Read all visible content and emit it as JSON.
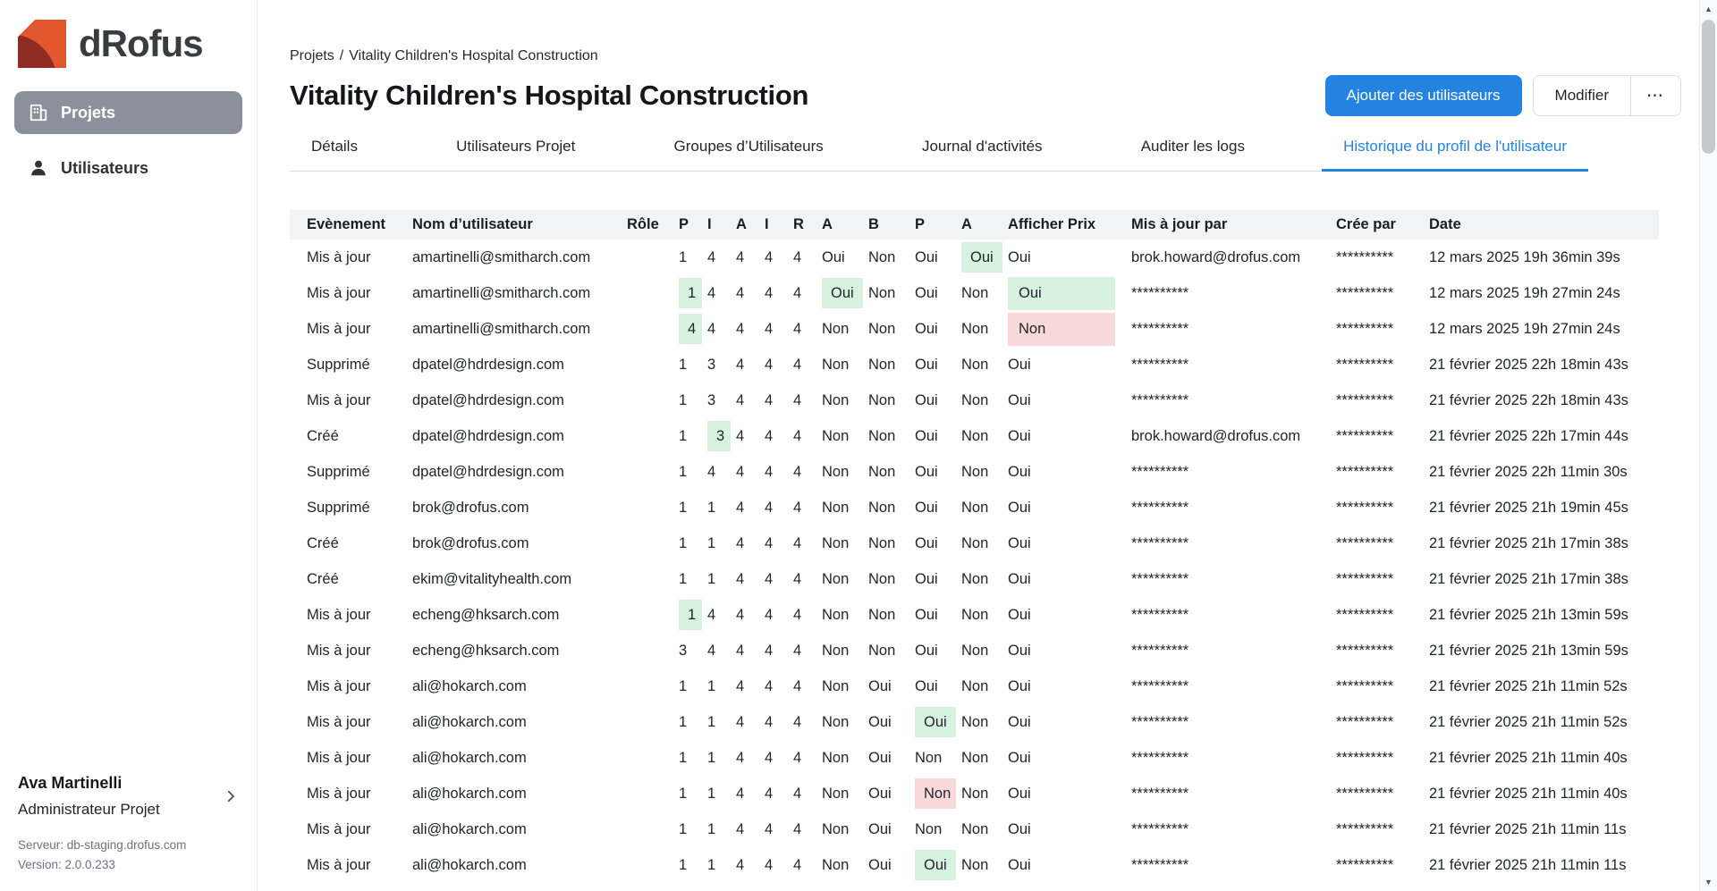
{
  "colors": {
    "accent_blue": "#2383e2",
    "highlight_green": "#d7f3e0",
    "highlight_red": "#f9d8da",
    "active_nav_gray": "#8a919a"
  },
  "sidebar": {
    "logo_text": "dRofus",
    "nav": [
      {
        "label": "Projets",
        "active": true
      },
      {
        "label": "Utilisateurs",
        "active": false
      }
    ],
    "user": {
      "name": "Ava Martinelli",
      "role": "Administrateur Projet",
      "server": "Serveur: db-staging.drofus.com",
      "version": "Version: 2.0.0.233"
    }
  },
  "header": {
    "breadcrumb": {
      "root": "Projets",
      "separator": "/",
      "current": "Vitality Children's Hospital Construction"
    },
    "title": "Vitality Children's Hospital Construction",
    "actions": {
      "add_users": "Ajouter des utilisateurs",
      "edit": "Modifier",
      "more": "⋯"
    }
  },
  "tabs": [
    {
      "label": "Détails",
      "active": false
    },
    {
      "label": "Utilisateurs Projet",
      "active": false
    },
    {
      "label": "Groupes d’Utilisateurs",
      "active": false
    },
    {
      "label": "Journal d'activités",
      "active": false
    },
    {
      "label": "Auditer les logs",
      "active": false
    },
    {
      "label": "Historique du profil de l'utilisateur",
      "active": true
    }
  ],
  "table": {
    "headers": [
      "Evènement",
      "Nom d’utilisateur",
      "Rôle",
      "P",
      "I",
      "A",
      "I",
      "R",
      "A",
      "B",
      "P",
      "A",
      "Afficher Prix",
      "Mis à jour par",
      "Crée par",
      "Date"
    ],
    "rows": [
      {
        "event": "Mis à jour",
        "user": "amartinelli@smitharch.com",
        "role": "",
        "cells": [
          [
            "1",
            ""
          ],
          [
            "4",
            ""
          ],
          [
            "4",
            ""
          ],
          [
            "4",
            ""
          ],
          [
            "4",
            ""
          ],
          [
            "Oui",
            ""
          ],
          [
            "Non",
            ""
          ],
          [
            "Oui",
            ""
          ],
          [
            "Oui",
            "g"
          ],
          [
            "Oui",
            ""
          ]
        ],
        "updated_by": "brok.howard@drofus.com",
        "created_by": "**********",
        "date": "12 mars 2025 19h 36min 39s"
      },
      {
        "event": "Mis à jour",
        "user": "amartinelli@smitharch.com",
        "role": "",
        "cells": [
          [
            "1",
            "g"
          ],
          [
            "4",
            ""
          ],
          [
            "4",
            ""
          ],
          [
            "4",
            ""
          ],
          [
            "4",
            ""
          ],
          [
            "Oui",
            "g"
          ],
          [
            "Non",
            ""
          ],
          [
            "Oui",
            ""
          ],
          [
            "Non",
            ""
          ],
          [
            "Oui",
            "g"
          ]
        ],
        "updated_by": "**********",
        "created_by": "**********",
        "date": "12 mars 2025 19h 27min 24s"
      },
      {
        "event": "Mis à jour",
        "user": "amartinelli@smitharch.com",
        "role": "",
        "cells": [
          [
            "4",
            "g"
          ],
          [
            "4",
            ""
          ],
          [
            "4",
            ""
          ],
          [
            "4",
            ""
          ],
          [
            "4",
            ""
          ],
          [
            "Non",
            ""
          ],
          [
            "Non",
            ""
          ],
          [
            "Oui",
            ""
          ],
          [
            "Non",
            ""
          ],
          [
            "Non",
            "r"
          ]
        ],
        "updated_by": "**********",
        "created_by": "**********",
        "date": "12 mars 2025 19h 27min 24s"
      },
      {
        "event": "Supprimé",
        "user": "dpatel@hdrdesign.com",
        "role": "",
        "cells": [
          [
            "1",
            ""
          ],
          [
            "3",
            ""
          ],
          [
            "4",
            ""
          ],
          [
            "4",
            ""
          ],
          [
            "4",
            ""
          ],
          [
            "Non",
            ""
          ],
          [
            "Non",
            ""
          ],
          [
            "Oui",
            ""
          ],
          [
            "Non",
            ""
          ],
          [
            "Oui",
            ""
          ]
        ],
        "updated_by": "**********",
        "created_by": "**********",
        "date": "21 février 2025 22h 18min 43s"
      },
      {
        "event": "Mis à jour",
        "user": "dpatel@hdrdesign.com",
        "role": "",
        "cells": [
          [
            "1",
            ""
          ],
          [
            "3",
            ""
          ],
          [
            "4",
            ""
          ],
          [
            "4",
            ""
          ],
          [
            "4",
            ""
          ],
          [
            "Non",
            ""
          ],
          [
            "Non",
            ""
          ],
          [
            "Oui",
            ""
          ],
          [
            "Non",
            ""
          ],
          [
            "Oui",
            ""
          ]
        ],
        "updated_by": "**********",
        "created_by": "**********",
        "date": "21 février 2025 22h 18min 43s"
      },
      {
        "event": "Créé",
        "user": "dpatel@hdrdesign.com",
        "role": "",
        "cells": [
          [
            "1",
            ""
          ],
          [
            "3",
            "g"
          ],
          [
            "4",
            ""
          ],
          [
            "4",
            ""
          ],
          [
            "4",
            ""
          ],
          [
            "Non",
            ""
          ],
          [
            "Non",
            ""
          ],
          [
            "Oui",
            ""
          ],
          [
            "Non",
            ""
          ],
          [
            "Oui",
            ""
          ]
        ],
        "updated_by": "brok.howard@drofus.com",
        "created_by": "**********",
        "date": "21 février 2025 22h 17min 44s"
      },
      {
        "event": "Supprimé",
        "user": "dpatel@hdrdesign.com",
        "role": "",
        "cells": [
          [
            "1",
            ""
          ],
          [
            "4",
            ""
          ],
          [
            "4",
            ""
          ],
          [
            "4",
            ""
          ],
          [
            "4",
            ""
          ],
          [
            "Non",
            ""
          ],
          [
            "Non",
            ""
          ],
          [
            "Oui",
            ""
          ],
          [
            "Non",
            ""
          ],
          [
            "Oui",
            ""
          ]
        ],
        "updated_by": "**********",
        "created_by": "**********",
        "date": "21 février 2025 22h 11min 30s"
      },
      {
        "event": "Supprimé",
        "user": "brok@drofus.com",
        "role": "",
        "cells": [
          [
            "1",
            ""
          ],
          [
            "1",
            ""
          ],
          [
            "4",
            ""
          ],
          [
            "4",
            ""
          ],
          [
            "4",
            ""
          ],
          [
            "Non",
            ""
          ],
          [
            "Non",
            ""
          ],
          [
            "Oui",
            ""
          ],
          [
            "Non",
            ""
          ],
          [
            "Oui",
            ""
          ]
        ],
        "updated_by": "**********",
        "created_by": "**********",
        "date": "21 février 2025 21h 19min 45s"
      },
      {
        "event": "Créé",
        "user": "brok@drofus.com",
        "role": "",
        "cells": [
          [
            "1",
            ""
          ],
          [
            "1",
            ""
          ],
          [
            "4",
            ""
          ],
          [
            "4",
            ""
          ],
          [
            "4",
            ""
          ],
          [
            "Non",
            ""
          ],
          [
            "Non",
            ""
          ],
          [
            "Oui",
            ""
          ],
          [
            "Non",
            ""
          ],
          [
            "Oui",
            ""
          ]
        ],
        "updated_by": "**********",
        "created_by": "**********",
        "date": "21 février 2025 21h 17min 38s"
      },
      {
        "event": "Créé",
        "user": "ekim@vitalityhealth.com",
        "role": "",
        "cells": [
          [
            "1",
            ""
          ],
          [
            "1",
            ""
          ],
          [
            "4",
            ""
          ],
          [
            "4",
            ""
          ],
          [
            "4",
            ""
          ],
          [
            "Non",
            ""
          ],
          [
            "Non",
            ""
          ],
          [
            "Oui",
            ""
          ],
          [
            "Non",
            ""
          ],
          [
            "Oui",
            ""
          ]
        ],
        "updated_by": "**********",
        "created_by": "**********",
        "date": "21 février 2025 21h 17min 38s"
      },
      {
        "event": "Mis à jour",
        "user": "echeng@hksarch.com",
        "role": "",
        "cells": [
          [
            "1",
            "g"
          ],
          [
            "4",
            ""
          ],
          [
            "4",
            ""
          ],
          [
            "4",
            ""
          ],
          [
            "4",
            ""
          ],
          [
            "Non",
            ""
          ],
          [
            "Non",
            ""
          ],
          [
            "Oui",
            ""
          ],
          [
            "Non",
            ""
          ],
          [
            "Oui",
            ""
          ]
        ],
        "updated_by": "**********",
        "created_by": "**********",
        "date": "21 février 2025 21h 13min 59s"
      },
      {
        "event": "Mis à jour",
        "user": "echeng@hksarch.com",
        "role": "",
        "cells": [
          [
            "3",
            ""
          ],
          [
            "4",
            ""
          ],
          [
            "4",
            ""
          ],
          [
            "4",
            ""
          ],
          [
            "4",
            ""
          ],
          [
            "Non",
            ""
          ],
          [
            "Non",
            ""
          ],
          [
            "Oui",
            ""
          ],
          [
            "Non",
            ""
          ],
          [
            "Oui",
            ""
          ]
        ],
        "updated_by": "**********",
        "created_by": "**********",
        "date": "21 février 2025 21h 13min 59s"
      },
      {
        "event": "Mis à jour",
        "user": "ali@hokarch.com",
        "role": "",
        "cells": [
          [
            "1",
            ""
          ],
          [
            "1",
            ""
          ],
          [
            "4",
            ""
          ],
          [
            "4",
            ""
          ],
          [
            "4",
            ""
          ],
          [
            "Non",
            ""
          ],
          [
            "Oui",
            ""
          ],
          [
            "Oui",
            ""
          ],
          [
            "Non",
            ""
          ],
          [
            "Oui",
            ""
          ]
        ],
        "updated_by": "**********",
        "created_by": "**********",
        "date": "21 février 2025 21h 11min 52s"
      },
      {
        "event": "Mis à jour",
        "user": "ali@hokarch.com",
        "role": "",
        "cells": [
          [
            "1",
            ""
          ],
          [
            "1",
            ""
          ],
          [
            "4",
            ""
          ],
          [
            "4",
            ""
          ],
          [
            "4",
            ""
          ],
          [
            "Non",
            ""
          ],
          [
            "Oui",
            ""
          ],
          [
            "Oui",
            "g"
          ],
          [
            "Non",
            ""
          ],
          [
            "Oui",
            ""
          ]
        ],
        "updated_by": "**********",
        "created_by": "**********",
        "date": "21 février 2025 21h 11min 52s"
      },
      {
        "event": "Mis à jour",
        "user": "ali@hokarch.com",
        "role": "",
        "cells": [
          [
            "1",
            ""
          ],
          [
            "1",
            ""
          ],
          [
            "4",
            ""
          ],
          [
            "4",
            ""
          ],
          [
            "4",
            ""
          ],
          [
            "Non",
            ""
          ],
          [
            "Oui",
            ""
          ],
          [
            "Non",
            ""
          ],
          [
            "Non",
            ""
          ],
          [
            "Oui",
            ""
          ]
        ],
        "updated_by": "**********",
        "created_by": "**********",
        "date": "21 février 2025 21h 11min 40s"
      },
      {
        "event": "Mis à jour",
        "user": "ali@hokarch.com",
        "role": "",
        "cells": [
          [
            "1",
            ""
          ],
          [
            "1",
            ""
          ],
          [
            "4",
            ""
          ],
          [
            "4",
            ""
          ],
          [
            "4",
            ""
          ],
          [
            "Non",
            ""
          ],
          [
            "Oui",
            ""
          ],
          [
            "Non",
            "r"
          ],
          [
            "Non",
            ""
          ],
          [
            "Oui",
            ""
          ]
        ],
        "updated_by": "**********",
        "created_by": "**********",
        "date": "21 février 2025 21h 11min 40s"
      },
      {
        "event": "Mis à jour",
        "user": "ali@hokarch.com",
        "role": "",
        "cells": [
          [
            "1",
            ""
          ],
          [
            "1",
            ""
          ],
          [
            "4",
            ""
          ],
          [
            "4",
            ""
          ],
          [
            "4",
            ""
          ],
          [
            "Non",
            ""
          ],
          [
            "Oui",
            ""
          ],
          [
            "Non",
            ""
          ],
          [
            "Non",
            ""
          ],
          [
            "Oui",
            ""
          ]
        ],
        "updated_by": "**********",
        "created_by": "**********",
        "date": "21 février 2025 21h 11min 11s"
      },
      {
        "event": "Mis à jour",
        "user": "ali@hokarch.com",
        "role": "",
        "cells": [
          [
            "1",
            ""
          ],
          [
            "1",
            ""
          ],
          [
            "4",
            ""
          ],
          [
            "4",
            ""
          ],
          [
            "4",
            ""
          ],
          [
            "Non",
            ""
          ],
          [
            "Oui",
            ""
          ],
          [
            "Oui",
            "g"
          ],
          [
            "Non",
            ""
          ],
          [
            "Oui",
            ""
          ]
        ],
        "updated_by": "**********",
        "created_by": "**********",
        "date": "21 février 2025 21h 11min 11s"
      }
    ]
  }
}
